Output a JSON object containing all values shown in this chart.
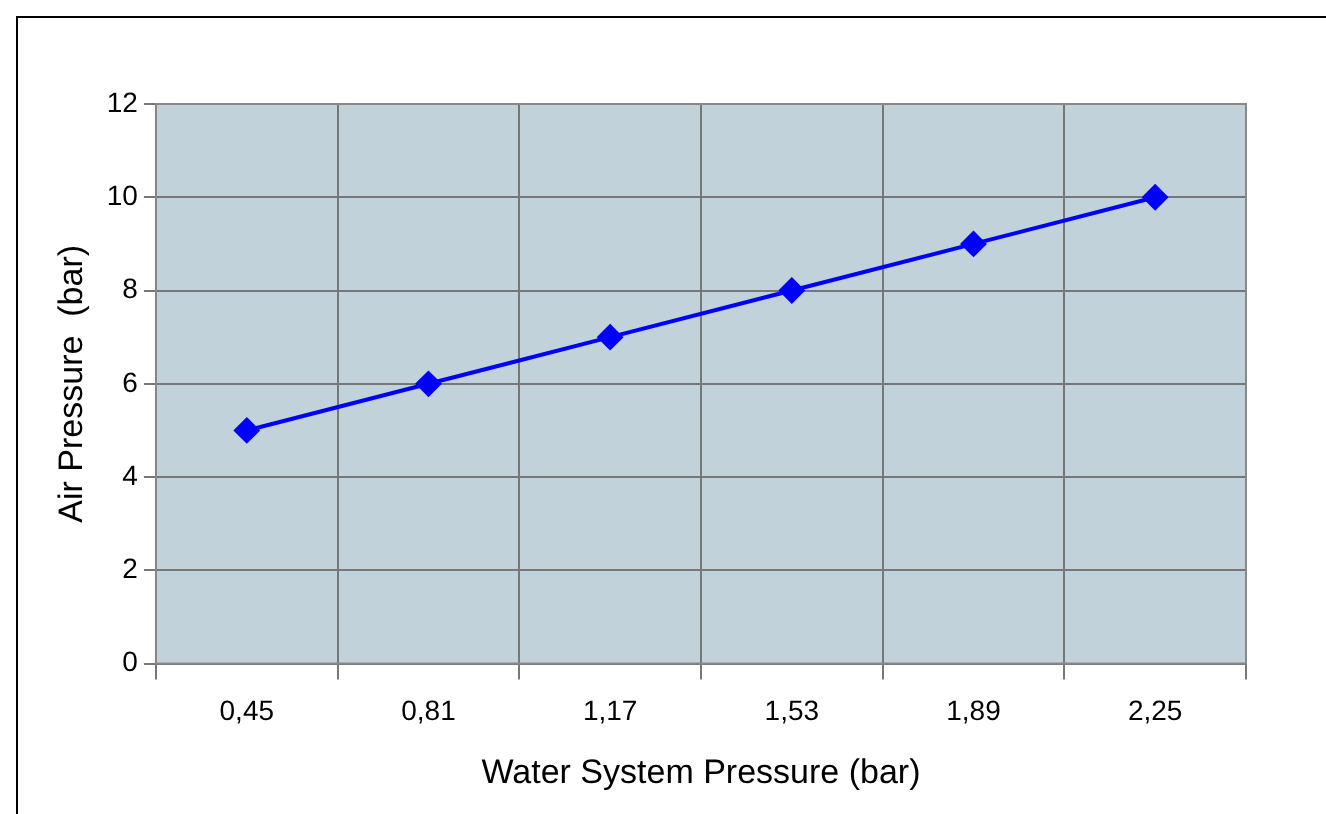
{
  "chart_data": {
    "type": "line",
    "xlabel": "Water System Pressure (bar)",
    "ylabel": "Air Pressure  (bar)",
    "categories": [
      "0,45",
      "0,81",
      "1,17",
      "1,53",
      "1,89",
      "2,25"
    ],
    "series": [
      {
        "color": "#0000ff",
        "values": [
          5,
          6,
          7,
          8,
          9,
          10
        ]
      }
    ],
    "ylim": [
      0,
      12
    ],
    "yticks": [
      0,
      2,
      4,
      6,
      8,
      10,
      12
    ],
    "grid": true,
    "legend": false,
    "marker": "diamond",
    "line_style": "solid"
  }
}
